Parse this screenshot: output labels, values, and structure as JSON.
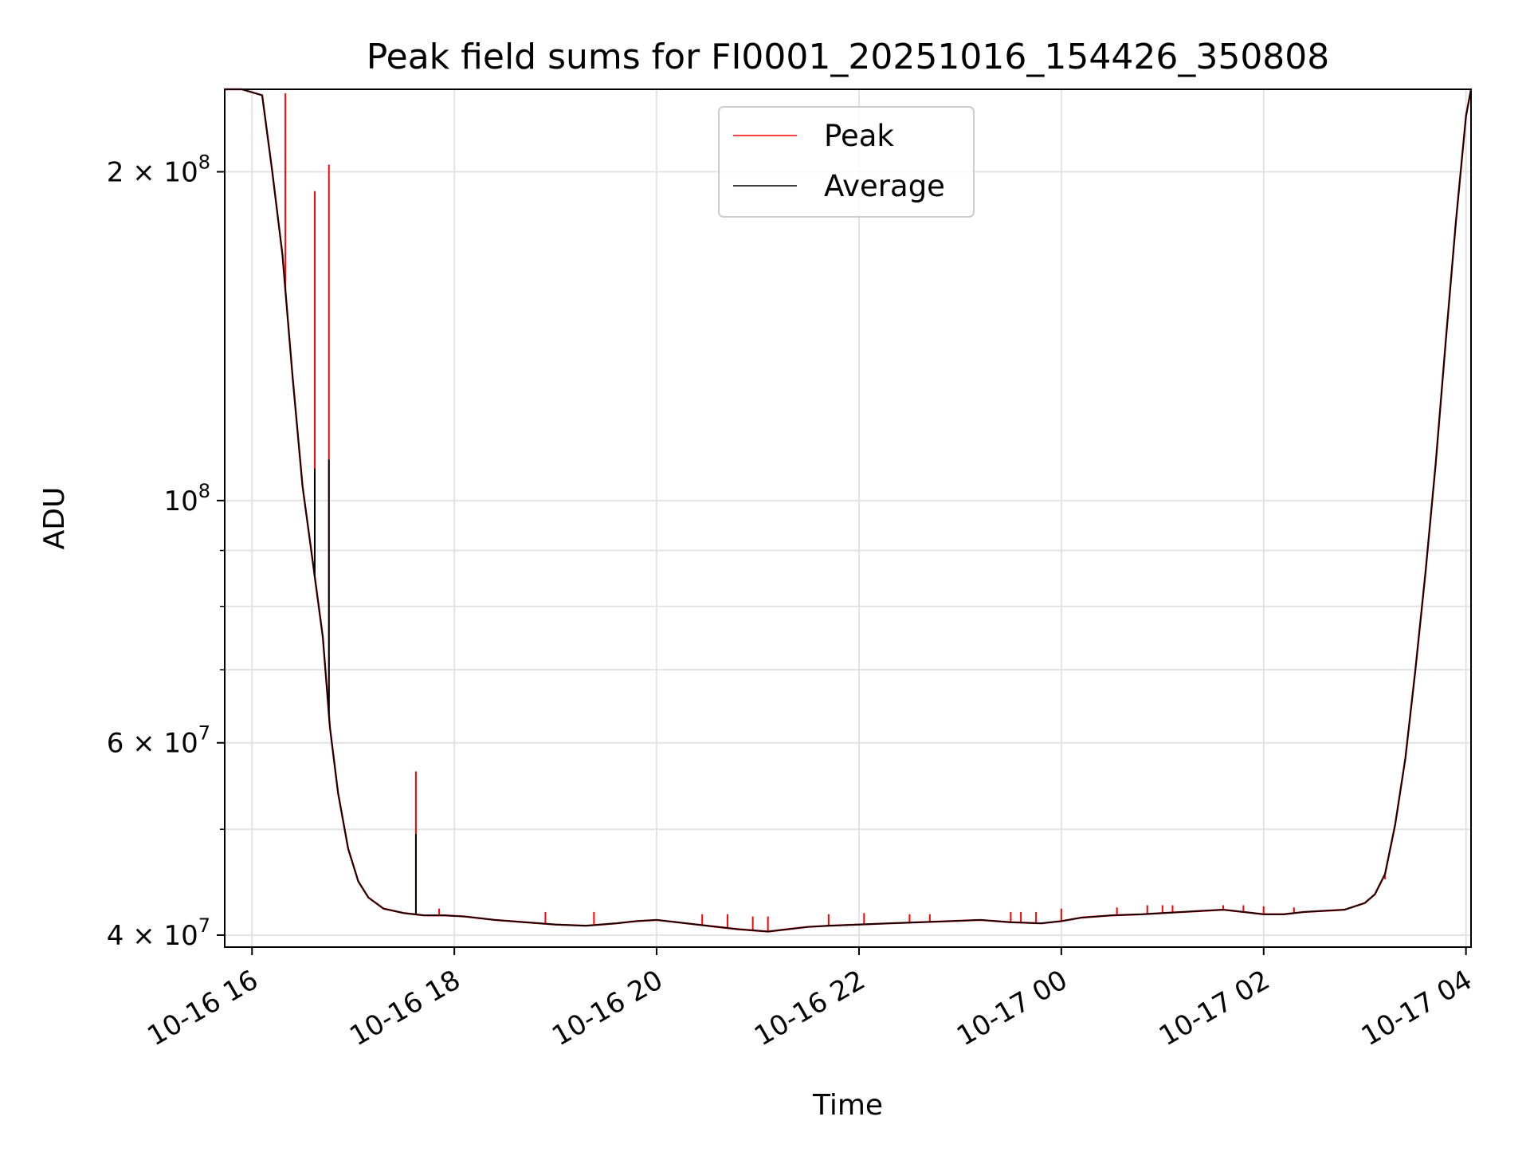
{
  "chart_data": {
    "type": "line",
    "title": "Peak field sums for FI0001_20251016_154426_350808",
    "xlabel": "Time",
    "ylabel": "ADU",
    "yscale": "log",
    "grid": true,
    "legend_position": "top-center",
    "xlim": [
      15.73,
      28.05
    ],
    "ylim": [
      39000000,
      238000000
    ],
    "x_units": "hours since 2025-10-16 00:00",
    "x_ticks": [
      {
        "value": 16,
        "label": "10-16 16"
      },
      {
        "value": 18,
        "label": "10-16 18"
      },
      {
        "value": 20,
        "label": "10-16 20"
      },
      {
        "value": 22,
        "label": "10-16 22"
      },
      {
        "value": 24,
        "label": "10-17 00"
      },
      {
        "value": 26,
        "label": "10-17 02"
      },
      {
        "value": 28,
        "label": "10-17 04"
      }
    ],
    "y_ticks": [
      {
        "value": 40000000,
        "mantissa": "4",
        "exponent": "7"
      },
      {
        "value": 60000000,
        "mantissa": "6",
        "exponent": "7"
      },
      {
        "value": 100000000,
        "mantissa": "",
        "exponent": "8"
      },
      {
        "value": 200000000,
        "mantissa": "2",
        "exponent": "8"
      }
    ],
    "y_ticks_minor": [
      50000000,
      70000000,
      80000000,
      90000000
    ],
    "base_label": "10",
    "times_symbol": "×",
    "series": [
      {
        "name": "Peak",
        "color": "#ff0000",
        "baseline": {
          "x": [
            15.73,
            15.9,
            16.1,
            16.2,
            16.3,
            16.4,
            16.5,
            16.6,
            16.7,
            16.77,
            16.85,
            16.95,
            17.05,
            17.15,
            17.3,
            17.5,
            17.7,
            17.9,
            18.1,
            18.4,
            18.7,
            19.0,
            19.3,
            19.6,
            19.8,
            20.0,
            20.2,
            20.5,
            20.8,
            21.1,
            21.3,
            21.5,
            21.7,
            22.0,
            22.3,
            22.6,
            22.9,
            23.2,
            23.5,
            23.8,
            24.0,
            24.2,
            24.5,
            24.8,
            25.0,
            25.2,
            25.4,
            25.6,
            25.8,
            26.0,
            26.2,
            26.4,
            26.6,
            26.8,
            27.0,
            27.1,
            27.2,
            27.3,
            27.4,
            27.5,
            27.6,
            27.7,
            27.8,
            27.9,
            28.0,
            28.05
          ],
          "y": [
            238000000,
            238000000,
            235000000,
            200000000,
            168000000,
            130000000,
            103000000,
            88000000,
            75000000,
            62000000,
            54000000,
            48000000,
            44800000,
            43300000,
            42300000,
            41900000,
            41700000,
            41700000,
            41600000,
            41300000,
            41100000,
            40900000,
            40800000,
            41000000,
            41200000,
            41300000,
            41100000,
            40800000,
            40500000,
            40300000,
            40500000,
            40700000,
            40800000,
            40900000,
            41000000,
            41100000,
            41200000,
            41300000,
            41100000,
            41000000,
            41200000,
            41500000,
            41700000,
            41800000,
            41900000,
            42000000,
            42100000,
            42200000,
            42000000,
            41800000,
            41800000,
            42000000,
            42100000,
            42200000,
            42800000,
            43600000,
            45500000,
            50500000,
            58000000,
            70000000,
            86000000,
            108000000,
            140000000,
            180000000,
            225000000,
            238000000
          ]
        },
        "spikes": [
          {
            "x": 16.33,
            "y": 236000000
          },
          {
            "x": 16.62,
            "y": 192000000
          },
          {
            "x": 16.76,
            "y": 203000000
          },
          {
            "x": 17.62,
            "y": 56500000
          },
          {
            "x": 17.85,
            "y": 42300000
          },
          {
            "x": 18.9,
            "y": 42000000
          },
          {
            "x": 19.38,
            "y": 42000000
          },
          {
            "x": 20.45,
            "y": 41800000
          },
          {
            "x": 20.7,
            "y": 41800000
          },
          {
            "x": 20.95,
            "y": 41600000
          },
          {
            "x": 21.1,
            "y": 41600000
          },
          {
            "x": 21.7,
            "y": 41800000
          },
          {
            "x": 22.05,
            "y": 41900000
          },
          {
            "x": 22.5,
            "y": 41800000
          },
          {
            "x": 22.7,
            "y": 41800000
          },
          {
            "x": 23.5,
            "y": 42000000
          },
          {
            "x": 23.6,
            "y": 42000000
          },
          {
            "x": 23.75,
            "y": 42000000
          },
          {
            "x": 24.0,
            "y": 42300000
          },
          {
            "x": 24.55,
            "y": 42400000
          },
          {
            "x": 24.85,
            "y": 42600000
          },
          {
            "x": 25.0,
            "y": 42600000
          },
          {
            "x": 25.1,
            "y": 42600000
          },
          {
            "x": 25.6,
            "y": 42600000
          },
          {
            "x": 25.8,
            "y": 42600000
          },
          {
            "x": 26.0,
            "y": 42500000
          },
          {
            "x": 26.3,
            "y": 42400000
          },
          {
            "x": 27.2,
            "y": 45000000
          }
        ]
      },
      {
        "name": "Average",
        "color": "#000000",
        "baseline": {
          "x": [
            15.73,
            15.9,
            16.1,
            16.2,
            16.3,
            16.4,
            16.5,
            16.6,
            16.7,
            16.77,
            16.85,
            16.95,
            17.05,
            17.15,
            17.3,
            17.5,
            17.7,
            17.9,
            18.1,
            18.4,
            18.7,
            19.0,
            19.3,
            19.6,
            19.8,
            20.0,
            20.2,
            20.5,
            20.8,
            21.1,
            21.3,
            21.5,
            21.7,
            22.0,
            22.3,
            22.6,
            22.9,
            23.2,
            23.5,
            23.8,
            24.0,
            24.2,
            24.5,
            24.8,
            25.0,
            25.2,
            25.4,
            25.6,
            25.8,
            26.0,
            26.2,
            26.4,
            26.6,
            26.8,
            27.0,
            27.1,
            27.2,
            27.3,
            27.4,
            27.5,
            27.6,
            27.7,
            27.8,
            27.9,
            28.0,
            28.05
          ],
          "y": [
            238000000,
            238000000,
            235000000,
            200000000,
            168000000,
            130000000,
            103000000,
            88000000,
            75000000,
            62000000,
            54000000,
            48000000,
            44800000,
            43300000,
            42300000,
            41900000,
            41700000,
            41700000,
            41600000,
            41300000,
            41100000,
            40900000,
            40800000,
            41000000,
            41200000,
            41300000,
            41100000,
            40800000,
            40500000,
            40300000,
            40500000,
            40700000,
            40800000,
            40900000,
            41000000,
            41100000,
            41200000,
            41300000,
            41100000,
            41000000,
            41200000,
            41500000,
            41700000,
            41800000,
            41900000,
            42000000,
            42100000,
            42200000,
            42000000,
            41800000,
            41800000,
            42000000,
            42100000,
            42200000,
            42800000,
            43600000,
            45500000,
            50500000,
            58000000,
            70000000,
            86000000,
            108000000,
            140000000,
            180000000,
            225000000,
            238000000
          ]
        },
        "spikes": [
          {
            "x": 16.62,
            "y": 107000000
          },
          {
            "x": 16.76,
            "y": 109000000
          },
          {
            "x": 17.62,
            "y": 49500000
          }
        ]
      }
    ]
  }
}
